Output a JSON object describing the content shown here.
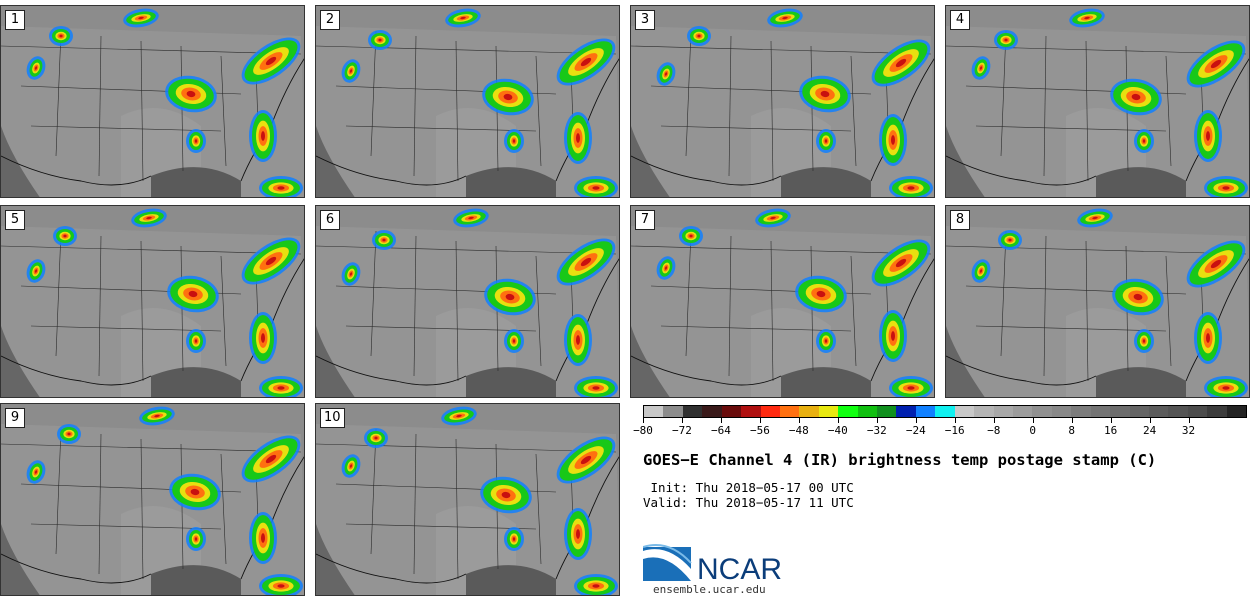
{
  "panels": [
    {
      "label": "1"
    },
    {
      "label": "2"
    },
    {
      "label": "3"
    },
    {
      "label": "4"
    },
    {
      "label": "5"
    },
    {
      "label": "6"
    },
    {
      "label": "7"
    },
    {
      "label": "8"
    },
    {
      "label": "9"
    },
    {
      "label": "10"
    }
  ],
  "colorbar": {
    "colors": [
      "#c8c8c8",
      "#8c8c8c",
      "#303030",
      "#3a1a1a",
      "#6a0c0c",
      "#b01010",
      "#ff2a10",
      "#ff7010",
      "#e8b010",
      "#e8e810",
      "#10ff10",
      "#10c010",
      "#10901e",
      "#0020b0",
      "#1080ff",
      "#10f0f0",
      "#c8c8c8",
      "#b4b4b4",
      "#a8a8a8",
      "#9c9c9c",
      "#909090",
      "#888888",
      "#7c7c7c",
      "#747474",
      "#6c6c6c",
      "#646464",
      "#5c5c5c",
      "#545454",
      "#4c4c4c",
      "#3c3c3c",
      "#242424"
    ],
    "ticks": [
      "-80",
      "-72",
      "-64",
      "-56",
      "-48",
      "-40",
      "-32",
      "-24",
      "-16",
      "-8",
      "0",
      "8",
      "16",
      "24",
      "32"
    ],
    "min": -80,
    "max": 44
  },
  "title": "GOES-E Channel 4 (IR) brightness temp postage stamp (C)",
  "init": " Init: Thu 2018-05-17 00 UTC",
  "valid": "Valid: Thu 2018-05-17 11 UTC",
  "logo_text": "NCAR",
  "site": "ensemble.ucar.edu"
}
